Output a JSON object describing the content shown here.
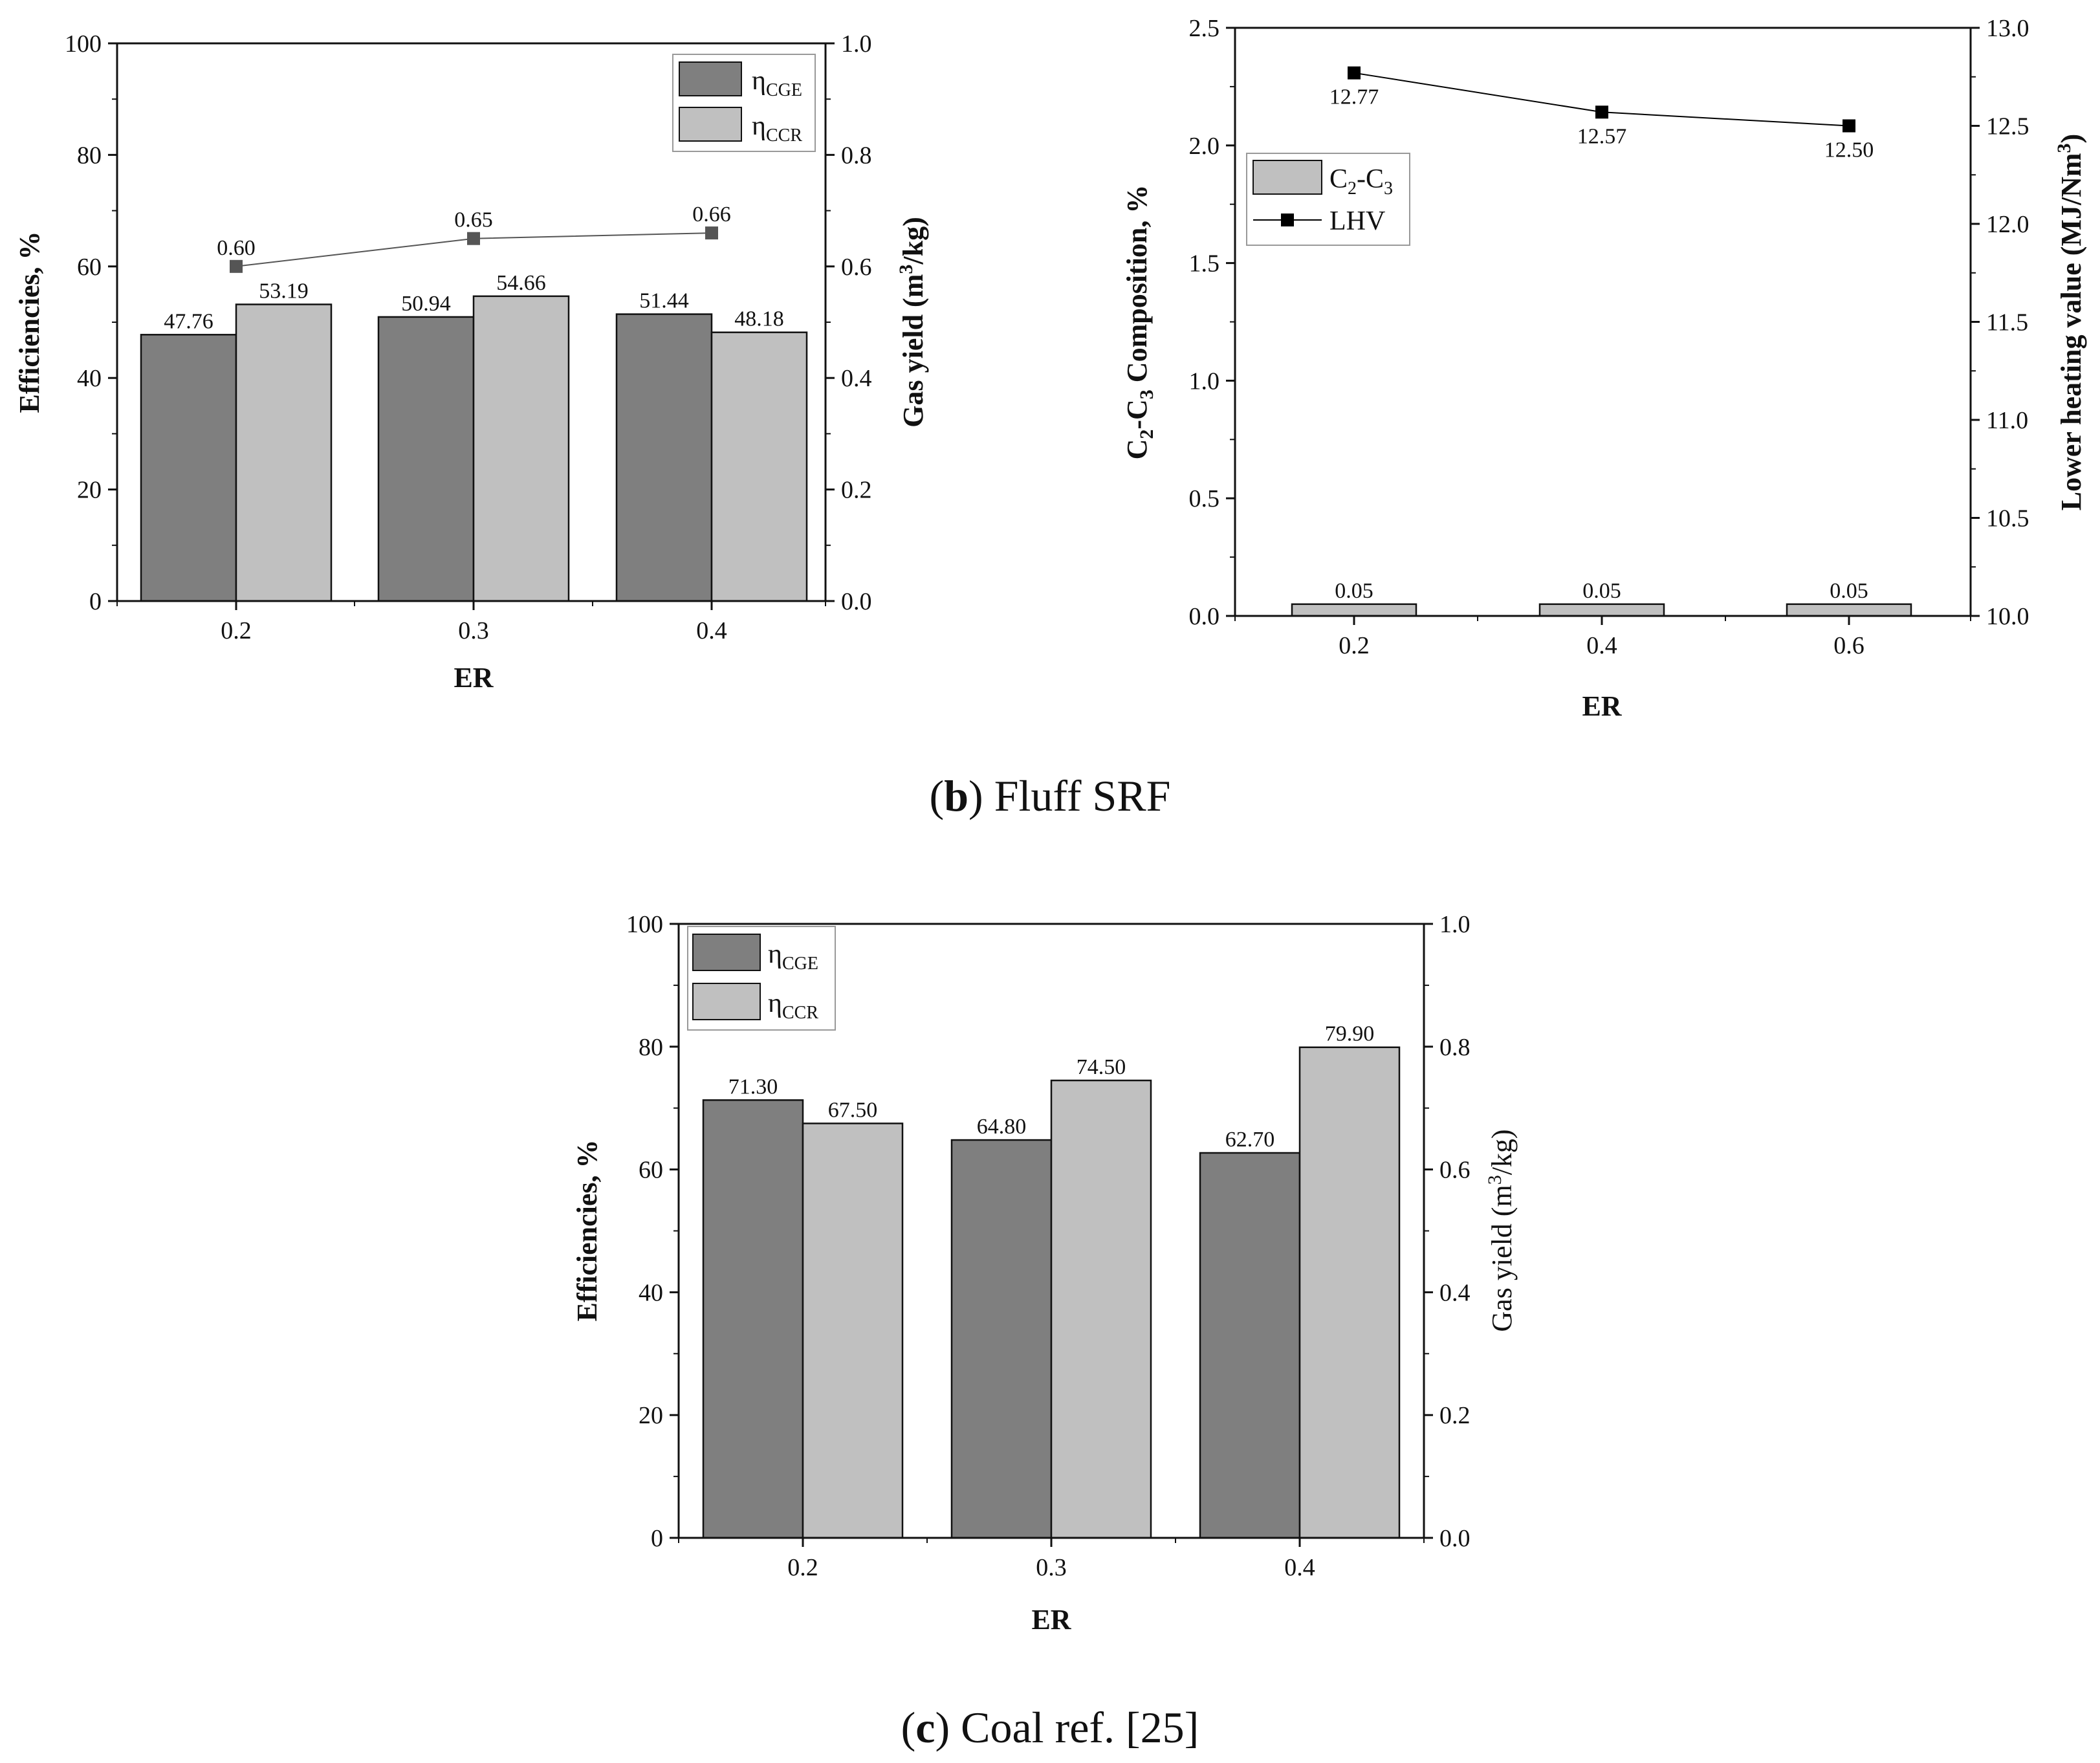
{
  "chart_data": [
    {
      "id": "b_left",
      "type": "bar+line",
      "categories": [
        "0.2",
        "0.3",
        "0.4"
      ],
      "xlabel": "ER",
      "ylabel": "Efficiencies, %",
      "y2label": "Gas yield (m³/kg)",
      "y2label_base": "Gas yield (m",
      "y2label_sup": "3",
      "y2label_tail": "/kg)",
      "ylim": [
        0,
        100
      ],
      "y2lim": [
        0.0,
        1.0
      ],
      "yticks": [
        "0",
        "20",
        "40",
        "60",
        "80",
        "100"
      ],
      "y2ticks": [
        "0.0",
        "0.2",
        "0.4",
        "0.6",
        "0.8",
        "1.0"
      ],
      "series": [
        {
          "name": "ηCGE",
          "name_base": "η",
          "name_sub": "CGE",
          "kind": "bar",
          "color": "#7f7f7f",
          "values": [
            47.76,
            50.94,
            51.44
          ],
          "labels": [
            "47.76",
            "50.94",
            "51.44"
          ]
        },
        {
          "name": "ηCCR",
          "name_base": "η",
          "name_sub": "CCR",
          "kind": "bar",
          "color": "#c0c0c0",
          "values": [
            53.19,
            54.66,
            48.18
          ],
          "labels": [
            "53.19",
            "54.66",
            "48.18"
          ]
        },
        {
          "name": "Gas yield",
          "kind": "line",
          "axis": "right",
          "color": "#555555",
          "values": [
            0.6,
            0.65,
            0.66
          ],
          "labels": [
            "0.60",
            "0.65",
            "0.66"
          ]
        }
      ]
    },
    {
      "id": "b_right",
      "type": "bar+line",
      "categories": [
        "0.2",
        "0.4",
        "0.6"
      ],
      "xlabel": "ER",
      "ylabel": "C₂-C₃ Composition, %",
      "y2label": "Lower heating value (MJ/Nm³)",
      "y2label_base": "Lower heating value (MJ/Nm",
      "y2label_sup": "3",
      "y2label_tail": ")",
      "ylim": [
        0.0,
        2.5
      ],
      "y2lim": [
        10.0,
        13.0
      ],
      "yticks": [
        "0.0",
        "0.5",
        "1.0",
        "1.5",
        "2.0",
        "2.5"
      ],
      "y2ticks": [
        "10.0",
        "10.5",
        "11.0",
        "11.5",
        "12.0",
        "12.5",
        "13.0"
      ],
      "series": [
        {
          "name": "C₂-C₃",
          "kind": "bar",
          "color": "#c0c0c0",
          "values": [
            0.05,
            0.05,
            0.05
          ],
          "labels": [
            "0.05",
            "0.05",
            "0.05"
          ]
        },
        {
          "name": "LHV",
          "kind": "line",
          "axis": "right",
          "color": "#000000",
          "values": [
            12.77,
            12.57,
            12.5
          ],
          "labels": [
            "12.77",
            "12.57",
            "12.50"
          ]
        }
      ]
    },
    {
      "id": "c",
      "type": "bar",
      "categories": [
        "0.2",
        "0.3",
        "0.4"
      ],
      "xlabel": "ER",
      "ylabel": "Efficiencies, %",
      "y2label": "Gas yield (m³/kg)",
      "y2label_base": "Gas yield (m",
      "y2label_sup": "3",
      "y2label_tail": "/kg)",
      "ylim": [
        0,
        100
      ],
      "y2lim": [
        0.0,
        1.0
      ],
      "yticks": [
        "0",
        "20",
        "40",
        "60",
        "80",
        "100"
      ],
      "y2ticks": [
        "0.0",
        "0.2",
        "0.4",
        "0.6",
        "0.8",
        "1.0"
      ],
      "series": [
        {
          "name": "ηCGE",
          "name_base": "η",
          "name_sub": "CGE",
          "kind": "bar",
          "color": "#7f7f7f",
          "values": [
            71.3,
            64.8,
            62.7
          ],
          "labels": [
            "71.30",
            "64.80",
            "62.70"
          ]
        },
        {
          "name": "ηCCR",
          "name_base": "η",
          "name_sub": "CCR",
          "kind": "bar",
          "color": "#c0c0c0",
          "values": [
            67.5,
            74.5,
            79.9
          ],
          "labels": [
            "67.50",
            "74.50",
            "79.90"
          ]
        }
      ]
    }
  ],
  "captions": {
    "b": {
      "letter": "b",
      "text": " Fluff SRF"
    },
    "c": {
      "letter": "c",
      "text": " Coal ref. [25]"
    }
  }
}
